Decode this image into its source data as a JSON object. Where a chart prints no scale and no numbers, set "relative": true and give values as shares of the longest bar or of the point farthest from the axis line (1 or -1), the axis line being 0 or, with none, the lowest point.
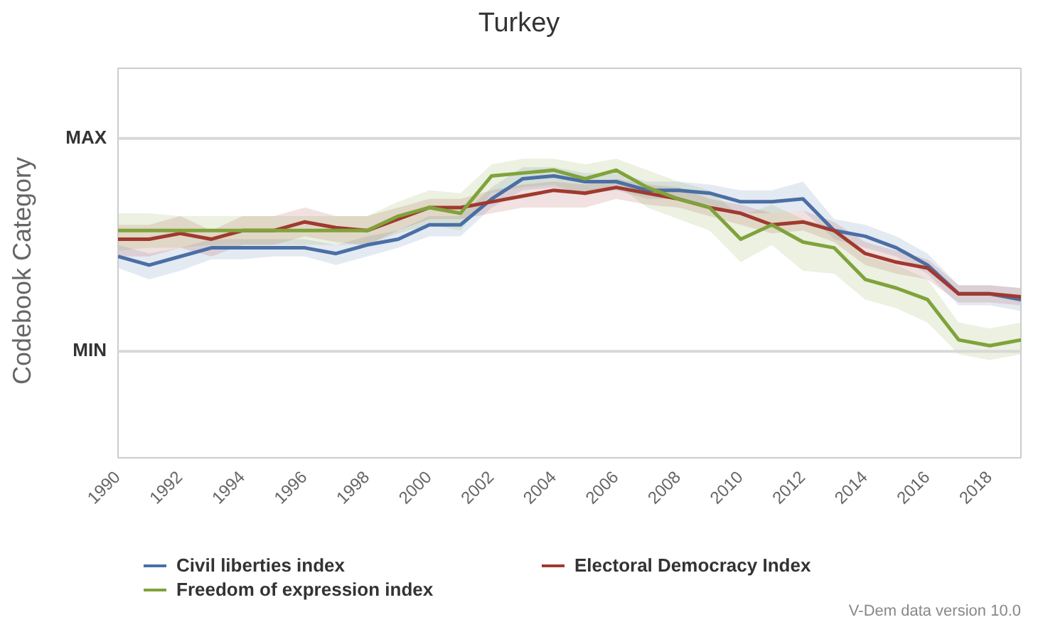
{
  "chart_data": {
    "type": "line",
    "title": "Turkey",
    "ylabel": "Codebook Category",
    "x": [
      1990,
      1991,
      1992,
      1993,
      1994,
      1995,
      1996,
      1997,
      1998,
      1999,
      2000,
      2001,
      2002,
      2003,
      2004,
      2005,
      2006,
      2007,
      2008,
      2009,
      2010,
      2011,
      2012,
      2013,
      2014,
      2015,
      2016,
      2017,
      2018,
      2019
    ],
    "xlim": [
      1990,
      2019
    ],
    "xticks": [
      1990,
      1992,
      1994,
      1996,
      1998,
      2000,
      2002,
      2004,
      2006,
      2008,
      2010,
      2012,
      2014,
      2016,
      2018
    ],
    "relative": true,
    "legend": "bottom",
    "marker": "none",
    "line_style": "solid",
    "ref_lines": [
      {
        "axis": "y",
        "value": 1.11,
        "label": "MAX",
        "color": "#d8d8d8"
      },
      {
        "axis": "y",
        "value": 0.37,
        "label": "MIN",
        "color": "#d8d8d8"
      }
    ],
    "series": [
      {
        "name": "Civil liberties index",
        "color": "#4a6fa5",
        "values": [
          0.7,
          0.67,
          0.7,
          0.73,
          0.73,
          0.73,
          0.73,
          0.71,
          0.74,
          0.76,
          0.81,
          0.81,
          0.9,
          0.97,
          0.98,
          0.96,
          0.96,
          0.93,
          0.93,
          0.92,
          0.89,
          0.89,
          0.9,
          0.79,
          0.77,
          0.73,
          0.67,
          0.57,
          0.57,
          0.55
        ],
        "upper": [
          0.74,
          0.71,
          0.73,
          0.76,
          0.76,
          0.76,
          0.76,
          0.74,
          0.77,
          0.79,
          0.84,
          0.84,
          0.94,
          1.01,
          1.01,
          0.99,
          0.99,
          0.96,
          0.96,
          0.95,
          0.93,
          0.93,
          0.96,
          0.83,
          0.81,
          0.77,
          0.71,
          0.6,
          0.6,
          0.59
        ],
        "lower": [
          0.66,
          0.62,
          0.65,
          0.69,
          0.69,
          0.7,
          0.7,
          0.67,
          0.7,
          0.73,
          0.77,
          0.77,
          0.87,
          0.93,
          0.94,
          0.92,
          0.93,
          0.9,
          0.9,
          0.88,
          0.85,
          0.85,
          0.86,
          0.76,
          0.73,
          0.7,
          0.64,
          0.53,
          0.53,
          0.51
        ]
      },
      {
        "name": "Electoral Democracy Index",
        "color": "#a0392f",
        "values": [
          0.76,
          0.76,
          0.78,
          0.76,
          0.79,
          0.79,
          0.82,
          0.8,
          0.79,
          0.83,
          0.87,
          0.87,
          0.89,
          0.91,
          0.93,
          0.92,
          0.94,
          0.92,
          0.9,
          0.87,
          0.85,
          0.81,
          0.82,
          0.79,
          0.71,
          0.68,
          0.66,
          0.57,
          0.57,
          0.56
        ],
        "upper": [
          0.81,
          0.81,
          0.84,
          0.79,
          0.84,
          0.84,
          0.87,
          0.84,
          0.84,
          0.87,
          0.9,
          0.9,
          0.93,
          0.95,
          0.96,
          0.95,
          0.97,
          0.95,
          0.94,
          0.9,
          0.88,
          0.85,
          0.86,
          0.82,
          0.75,
          0.72,
          0.69,
          0.6,
          0.6,
          0.59
        ],
        "lower": [
          0.7,
          0.7,
          0.73,
          0.7,
          0.74,
          0.74,
          0.77,
          0.75,
          0.74,
          0.79,
          0.83,
          0.83,
          0.85,
          0.87,
          0.87,
          0.87,
          0.9,
          0.88,
          0.87,
          0.84,
          0.81,
          0.78,
          0.79,
          0.75,
          0.67,
          0.64,
          0.62,
          0.54,
          0.54,
          0.53
        ]
      },
      {
        "name": "Freedom of expression index",
        "color": "#7fa33a",
        "values": [
          0.79,
          0.79,
          0.79,
          0.79,
          0.79,
          0.79,
          0.79,
          0.79,
          0.79,
          0.84,
          0.87,
          0.85,
          0.98,
          0.99,
          1.0,
          0.97,
          1.0,
          0.94,
          0.9,
          0.87,
          0.76,
          0.81,
          0.75,
          0.73,
          0.62,
          0.59,
          0.55,
          0.41,
          0.39,
          0.41
        ],
        "upper": [
          0.85,
          0.85,
          0.84,
          0.84,
          0.84,
          0.84,
          0.84,
          0.84,
          0.84,
          0.89,
          0.93,
          0.92,
          1.02,
          1.04,
          1.04,
          1.02,
          1.04,
          1.0,
          0.96,
          0.93,
          0.84,
          0.88,
          0.83,
          0.8,
          0.7,
          0.67,
          0.62,
          0.47,
          0.45,
          0.47
        ],
        "lower": [
          0.72,
          0.73,
          0.73,
          0.74,
          0.74,
          0.74,
          0.74,
          0.74,
          0.74,
          0.78,
          0.81,
          0.79,
          0.92,
          0.94,
          0.95,
          0.91,
          0.95,
          0.87,
          0.83,
          0.79,
          0.68,
          0.74,
          0.65,
          0.64,
          0.55,
          0.52,
          0.47,
          0.36,
          0.34,
          0.36
        ]
      }
    ],
    "annotations": [
      "V-Dem data version 10.0"
    ]
  }
}
